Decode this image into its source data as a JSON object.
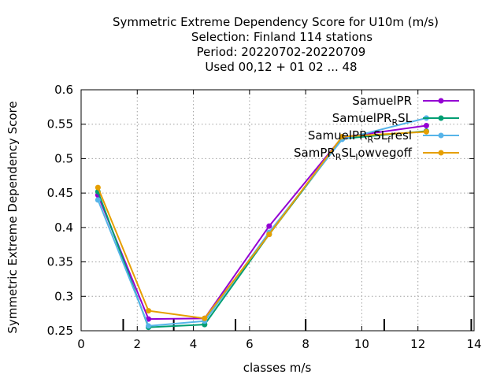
{
  "chart_data": {
    "type": "line",
    "title_lines": [
      "Symmetric Extreme Dependency Score  for U10m (m/s)",
      "Selection: Finland    114 stations",
      "Period: 20220702-20220709",
      "Used  00,12  + 01 02 ... 48"
    ],
    "xlabel": "classes m/s",
    "ylabel": "Symmetric Extreme Dependency Score",
    "xlim": [
      0,
      14
    ],
    "ylim": [
      0.25,
      0.6
    ],
    "xticks": [
      0,
      2,
      4,
      6,
      8,
      10,
      12,
      14
    ],
    "yticks": [
      0.25,
      0.3,
      0.35,
      0.4,
      0.45,
      0.5,
      0.55,
      0.6
    ],
    "grid": true,
    "legend_position": "top-right",
    "class_bounds": [
      1.5,
      3.3,
      5.5,
      8,
      10.8,
      13.9
    ],
    "x": [
      0.6,
      2.4,
      4.4,
      6.7,
      9.3,
      12.3
    ],
    "series": [
      {
        "name": "SamuelPR",
        "name_parts": [
          [
            "SamuelPR",
            false
          ]
        ],
        "color": "#9400d3",
        "values": [
          0.447,
          0.267,
          0.268,
          0.402,
          0.531,
          0.548
        ]
      },
      {
        "name": "SamuelPR_RSL",
        "name_parts": [
          [
            "SamuelPR",
            false
          ],
          [
            "R",
            true
          ],
          [
            "SL",
            false
          ]
        ],
        "color": "#009e73",
        "values": [
          0.452,
          0.255,
          0.259,
          0.39,
          0.529,
          0.54
        ]
      },
      {
        "name": "SamuelPR_RSL_fresl",
        "name_parts": [
          [
            "SamuelPR",
            false
          ],
          [
            "R",
            true
          ],
          [
            "SL",
            false
          ],
          [
            "f",
            true
          ],
          "resl"
        ],
        "color": "#56b4e9",
        "values": [
          0.44,
          0.257,
          0.264,
          0.393,
          0.528,
          0.559
        ]
      },
      {
        "name": "SamPR_RSL_lowvegoff",
        "name_parts": [
          [
            "SamPR",
            false
          ],
          [
            "R",
            true
          ],
          [
            "SL",
            false
          ],
          [
            "l",
            true
          ],
          [
            "owvegoff",
            false
          ]
        ],
        "color": "#e69f00",
        "values": [
          0.458,
          0.279,
          0.268,
          0.39,
          0.532,
          0.539
        ]
      }
    ]
  }
}
